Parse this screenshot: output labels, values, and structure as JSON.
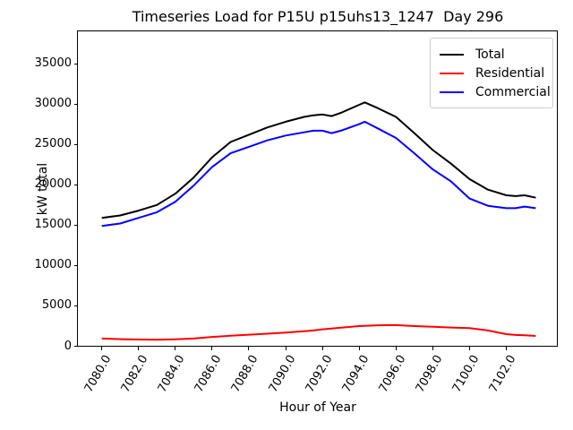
{
  "title": "Timeseries Load for P15U p15uhs13_1247  Day 296",
  "chart_data": {
    "type": "line",
    "title": "Timeseries Load for P15U p15uhs13_1247  Day 296",
    "xlabel": "Hour of Year",
    "ylabel": "kW total",
    "xlim": [
      7078.7,
      7104.8
    ],
    "ylim": [
      0,
      39000
    ],
    "grid": false,
    "legend_position": "upper right",
    "xticks": [
      7080,
      7082,
      7084,
      7086,
      7088,
      7090,
      7092,
      7094,
      7096,
      7098,
      7100,
      7102
    ],
    "xtick_labels": [
      "7080.0",
      "7082.0",
      "7084.0",
      "7086.0",
      "7088.0",
      "7090.0",
      "7092.0",
      "7094.0",
      "7096.0",
      "7098.0",
      "7100.0",
      "7102.0"
    ],
    "yticks": [
      0,
      5000,
      10000,
      15000,
      20000,
      25000,
      30000,
      35000
    ],
    "ytick_labels": [
      "0",
      "5000",
      "10000",
      "15000",
      "20000",
      "25000",
      "30000",
      "35000"
    ],
    "x": [
      7080,
      7081,
      7082,
      7083,
      7084,
      7085,
      7086,
      7087,
      7088,
      7089,
      7090,
      7091,
      7091.5,
      7092,
      7092.5,
      7093,
      7094,
      7094.3,
      7095,
      7096,
      7097,
      7098,
      7099,
      7100,
      7101,
      7102,
      7102.5,
      7103,
      7103.6
    ],
    "series": [
      {
        "name": "Total",
        "color": "#000000",
        "values": [
          15900,
          16200,
          16800,
          17500,
          18900,
          20900,
          23400,
          25300,
          26200,
          27100,
          27800,
          28400,
          28600,
          28700,
          28500,
          28900,
          29900,
          30200,
          29500,
          28400,
          26400,
          24300,
          22600,
          20700,
          19400,
          18700,
          18600,
          18700,
          18400
        ]
      },
      {
        "name": "Residential",
        "color": "#ff0000",
        "values": [
          950,
          880,
          830,
          800,
          870,
          950,
          1150,
          1300,
          1430,
          1550,
          1700,
          1850,
          1950,
          2100,
          2200,
          2300,
          2500,
          2520,
          2600,
          2620,
          2500,
          2420,
          2320,
          2250,
          1950,
          1500,
          1400,
          1350,
          1280
        ]
      },
      {
        "name": "Commercial",
        "color": "#0000ff",
        "values": [
          14900,
          15200,
          15900,
          16600,
          17900,
          19900,
          22200,
          23900,
          24700,
          25500,
          26100,
          26500,
          26700,
          26700,
          26400,
          26700,
          27500,
          27800,
          27000,
          25800,
          23900,
          21900,
          20400,
          18300,
          17400,
          17100,
          17100,
          17300,
          17100
        ]
      }
    ]
  }
}
